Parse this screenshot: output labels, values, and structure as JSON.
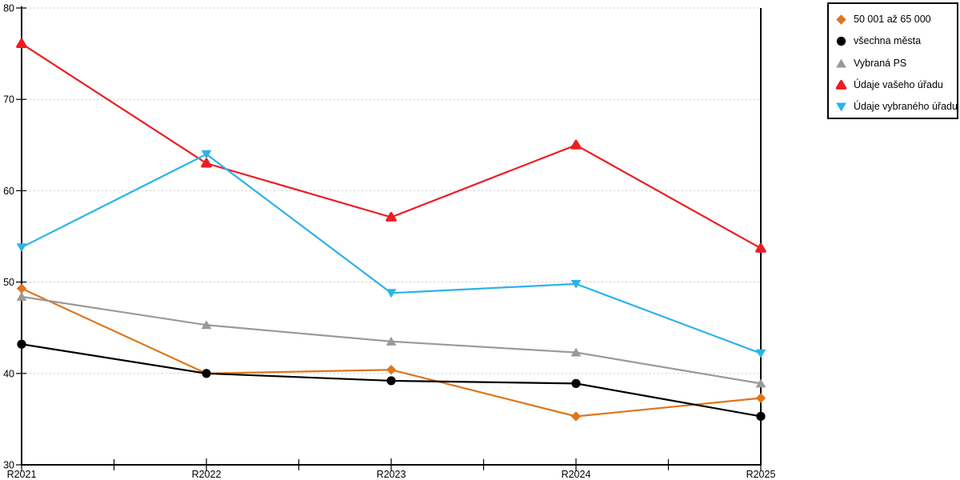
{
  "chart_data": {
    "type": "line",
    "title": "",
    "xlabel": "",
    "ylabel": "",
    "categories": [
      "R2021",
      "R2022",
      "R2023",
      "R2024",
      "R2025"
    ],
    "ylim": [
      30,
      80
    ],
    "y_ticks": [
      30,
      40,
      50,
      60,
      70,
      80
    ],
    "grid": "horizontal dotted gridlines",
    "legend_position": "top-right",
    "gridline_color": "#c9c9c9",
    "axis_color": "#000000",
    "series": [
      {
        "name": "50 001 až 65 000",
        "marker": "diamond",
        "color": "#dd761c",
        "values": [
          49.3,
          40.0,
          40.4,
          35.3,
          37.3
        ]
      },
      {
        "name": "všechna města",
        "marker": "circle",
        "color": "#000000",
        "values": [
          43.2,
          40.0,
          39.2,
          38.9,
          35.3
        ]
      },
      {
        "name": "Vybraná PS",
        "marker": "triangle-up",
        "color": "#999999",
        "values": [
          48.4,
          45.3,
          43.5,
          42.3,
          38.9
        ]
      },
      {
        "name": "Údaje vašeho úřadu",
        "marker": "triangle-rounded",
        "color": "#ee1c23",
        "values": [
          76.1,
          63.0,
          57.1,
          65.0,
          53.7
        ]
      },
      {
        "name": "Údaje vybraného úřadu",
        "marker": "triangle-down",
        "color": "#2bb3e8",
        "values": [
          53.8,
          64.0,
          48.8,
          49.8,
          42.2
        ]
      }
    ]
  }
}
